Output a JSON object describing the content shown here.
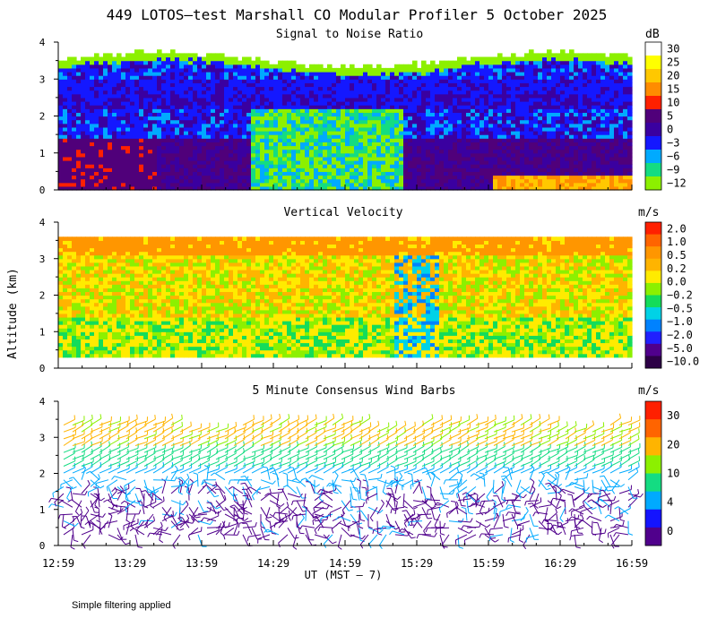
{
  "title": "449 LOTOS—test Marshall CO Modular Profiler  5 October 2025",
  "ylabel": "Altitude (km)",
  "xlabel": "UT  (MST — 7)",
  "footnote": "Simple filtering applied",
  "time_ticks": [
    "12:59",
    "13:29",
    "13:59",
    "14:29",
    "14:59",
    "15:29",
    "15:59",
    "16:29",
    "16:59"
  ],
  "alt_ticks": [
    "0",
    "1",
    "2",
    "3",
    "4"
  ],
  "chart_data": [
    {
      "type": "heatmap",
      "title": "Signal to Noise Ratio",
      "unit": "dB",
      "ylim": [
        0,
        4
      ],
      "colorbar": {
        "labels": [
          "30",
          "25",
          "20",
          "15",
          "10",
          "5",
          "0",
          "−3",
          "−6",
          "−9",
          "−12"
        ],
        "colors": [
          "#ffffff",
          "#ffff00",
          "#ffc800",
          "#ff8c00",
          "#ff2000",
          "#50007a",
          "#3a00a0",
          "#1418ff",
          "#00aaff",
          "#14dc82",
          "#8cf000"
        ]
      }
    },
    {
      "type": "heatmap",
      "title": "Vertical Velocity",
      "unit": "m/s",
      "ylim": [
        0,
        4
      ],
      "colorbar": {
        "labels": [
          "2.0",
          "1.0",
          "0.5",
          "0.2",
          "0.0",
          "−0.2",
          "−0.5",
          "−1.0",
          "−2.0",
          "−5.0",
          "−10.0"
        ],
        "colors": [
          "#ff2000",
          "#ff6400",
          "#ff9600",
          "#ffb400",
          "#ffeb00",
          "#8cf000",
          "#14dc5a",
          "#00d2e6",
          "#0082ff",
          "#2020ff",
          "#50008c",
          "#2d0046"
        ]
      }
    },
    {
      "type": "heatmap",
      "title": "5 Minute Consensus Wind Barbs",
      "unit": "m/s",
      "ylim": [
        0,
        4
      ],
      "colorbar": {
        "labels": [
          "30",
          "20",
          "10",
          "4",
          "0"
        ],
        "colors": [
          "#ff2000",
          "#ff6400",
          "#ffb400",
          "#8cf000",
          "#14dc82",
          "#00aaff",
          "#1414ff",
          "#50008c"
        ]
      }
    }
  ]
}
